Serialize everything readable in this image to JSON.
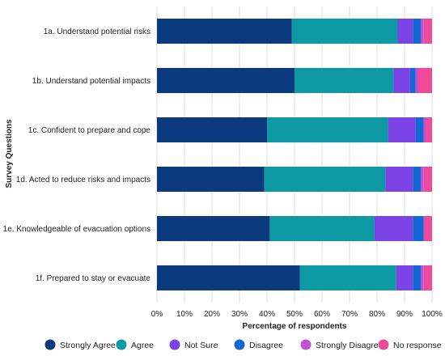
{
  "chart_data": {
    "type": "bar",
    "orientation": "horizontal",
    "stacked": true,
    "categories": [
      "1a. Understand potential risks",
      "1b. Understand potential impacts",
      "1c. Confident to prepare and cope",
      "1d. Acted to reduce risks and impacts",
      "1e. Knowledgeable of evacuation options",
      "1f. Prepared to stay or evacuate"
    ],
    "series": [
      {
        "name": "Strongly Agree",
        "color": "#0b3a7e",
        "values": [
          49,
          50,
          40,
          39,
          41,
          52
        ]
      },
      {
        "name": "Agree",
        "color": "#0e9aa4",
        "values": [
          38.5,
          36,
          44,
          44,
          38,
          35
        ]
      },
      {
        "name": "Not Sure",
        "color": "#7b43e6",
        "values": [
          5.5,
          6,
          10,
          10,
          14,
          6
        ]
      },
      {
        "name": "Disagree",
        "color": "#1567d6",
        "values": [
          3,
          2,
          3,
          3,
          4,
          3
        ]
      },
      {
        "name": "Strongly Disagree",
        "color": "#c44fd6",
        "values": [
          1,
          1,
          0.5,
          1,
          0,
          1
        ]
      },
      {
        "name": "No response",
        "color": "#ee4b9b",
        "values": [
          3,
          5,
          2.5,
          3,
          3,
          3
        ]
      }
    ],
    "xlabel": "Percentage of respondents",
    "ylabel": "Survey Questions",
    "xlim": [
      0,
      100
    ],
    "xticks": [
      "0%",
      "10%",
      "20%",
      "30%",
      "40%",
      "50%",
      "60%",
      "70%",
      "80%",
      "90%",
      "100%"
    ],
    "grid": "vertical",
    "legend_position": "bottom"
  }
}
